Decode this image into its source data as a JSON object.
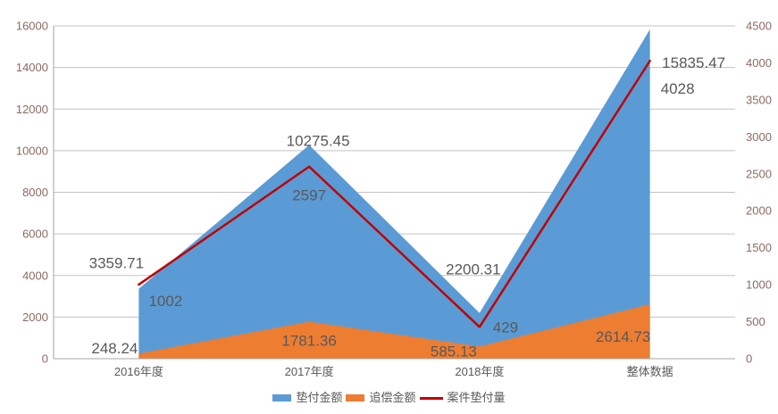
{
  "chart_data": {
    "type": "area",
    "subtype": "area series with secondary-axis line series",
    "categories": [
      "2016年度",
      "2017年度",
      "2018年度",
      "整体数据"
    ],
    "series": [
      {
        "name": "垫付金额",
        "kind": "area",
        "axis": "left",
        "color": "#5B9BD5",
        "values": [
          3359.71,
          10275.45,
          2200.31,
          15835.47
        ],
        "labels": [
          "3359.71",
          "10275.45",
          "2200.31",
          "15835.47"
        ]
      },
      {
        "name": "追偿金额",
        "kind": "area",
        "axis": "left",
        "color": "#ED7D31",
        "values": [
          248.24,
          1781.36,
          585.13,
          2614.73
        ],
        "labels": [
          "248.24",
          "1781.36",
          "585.13",
          "2614.73"
        ]
      },
      {
        "name": "案件垫付量",
        "kind": "line",
        "axis": "right",
        "color": "#C00000",
        "values": [
          1002,
          2597,
          429,
          4028
        ],
        "labels": [
          "1002",
          "2597",
          "429",
          "4028"
        ]
      }
    ],
    "left_axis": {
      "min": 0,
      "max": 16000,
      "step": 2000,
      "ticks": [
        "0",
        "2000",
        "4000",
        "6000",
        "8000",
        "10000",
        "12000",
        "14000",
        "16000"
      ]
    },
    "right_axis": {
      "min": 0,
      "max": 4500,
      "step": 500,
      "ticks": [
        "0",
        "500",
        "1000",
        "1500",
        "2000",
        "2500",
        "3000",
        "3500",
        "4000",
        "4500"
      ]
    },
    "grid": true,
    "legend_position": "bottom",
    "title": ""
  },
  "colors": {
    "grid": "#C3C3C3",
    "axis_line": "#A6A6A6",
    "axis_tick_label": "#8C6A62",
    "category_label": "#595959",
    "data_label": "#595959",
    "background": "#FFFFFF"
  }
}
